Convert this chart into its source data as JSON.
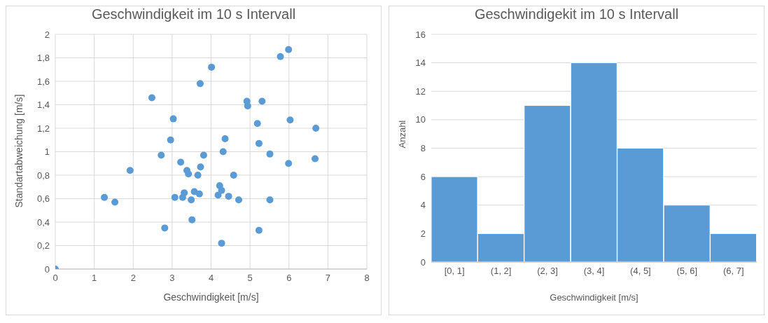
{
  "chart_data": [
    {
      "type": "scatter",
      "title": "Geschwindigkeit im 10 s Intervall",
      "xlabel": "Geschwindigkeit [m/s]",
      "ylabel": "Standartabweichung [m/s]",
      "marker": "circle",
      "grid": true,
      "xlim": [
        0,
        8
      ],
      "xticks": [
        0,
        1,
        2,
        3,
        4,
        5,
        6,
        7,
        8
      ],
      "ylim": [
        0,
        2
      ],
      "yticks": [
        0,
        {
          "value": 0.2,
          "label": "0,2"
        },
        {
          "value": 0.4,
          "label": "0,4"
        },
        {
          "value": 0.6,
          "label": "0,6"
        },
        {
          "value": 0.8,
          "label": "0,8"
        },
        1,
        {
          "value": 1.2,
          "label": "1,2"
        },
        {
          "value": 1.4,
          "label": "1,4"
        },
        {
          "value": 1.6,
          "label": "1,6"
        },
        {
          "value": 1.8,
          "label": "1,8"
        },
        2
      ],
      "series": [
        {
          "color": "#5b9bd5",
          "x": [
            0,
            1.26,
            1.53,
            1.92,
            2.48,
            2.72,
            2.81,
            2.96,
            3.03,
            3.07,
            3.22,
            3.27,
            3.31,
            3.38,
            3.42,
            3.49,
            3.51,
            3.57,
            3.66,
            3.7,
            3.73,
            3.72,
            3.81,
            4.01,
            4.27,
            4.36,
            4.31,
            4.58,
            4.22,
            4.27,
            4.18,
            4.45,
            4.71,
            5.51,
            5.23,
            4.92,
            4.94,
            5.31,
            5.19,
            5.23,
            5.51,
            5.99,
            6.03,
            6.69,
            6.67,
            5.78,
            5.99
          ],
          "values": [
            0,
            0.61,
            0.57,
            0.84,
            1.46,
            0.97,
            0.35,
            1.1,
            1.28,
            0.61,
            0.91,
            0.61,
            0.65,
            0.84,
            0.81,
            0.59,
            0.42,
            0.66,
            0.8,
            0.64,
            0.87,
            1.58,
            0.97,
            1.72,
            0.22,
            1.11,
            1.0,
            0.8,
            0.71,
            0.67,
            0.63,
            0.62,
            0.59,
            0.59,
            0.33,
            1.43,
            1.39,
            1.43,
            1.24,
            1.07,
            0.98,
            0.9,
            1.27,
            1.2,
            0.94,
            1.81,
            1.87
          ]
        }
      ]
    },
    {
      "type": "bar",
      "title": "Geschwindigekit im 10 s Intervall",
      "xlabel": "Geschwindigkeit [m/s]",
      "ylabel": "Anzahl",
      "grid": "y",
      "categories": [
        "[0, 1]",
        "(1, 2]",
        "(2, 3]",
        "(3, 4]",
        "(4, 5]",
        "(5, 6]",
        "(6, 7]"
      ],
      "values": [
        6,
        2,
        11,
        14,
        8,
        4,
        2
      ],
      "color": "#5b9bd5",
      "ylim": [
        0,
        16
      ],
      "yticks": [
        0,
        2,
        4,
        6,
        8,
        10,
        12,
        14,
        16
      ]
    }
  ]
}
